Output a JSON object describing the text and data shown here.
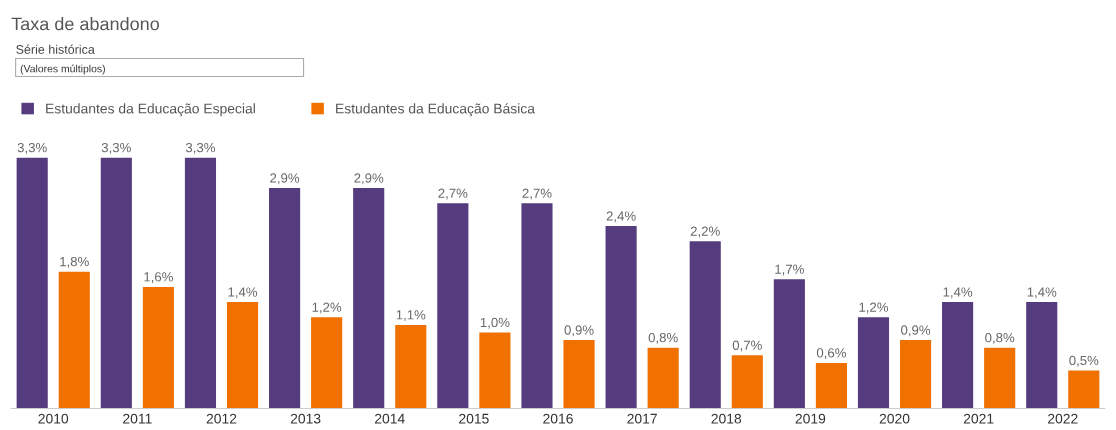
{
  "chart_data": {
    "type": "bar",
    "title": "Taxa de abandono",
    "annotations": [
      "Série histórica",
      "(Valores múltiplos)"
    ],
    "categories": [
      "2010",
      "2011",
      "2012",
      "2013",
      "2014",
      "2015",
      "2016",
      "2017",
      "2018",
      "2019",
      "2020",
      "2021",
      "2022"
    ],
    "series": [
      {
        "name": "Estudantes da Educação Especial",
        "color": "#553c7f",
        "values": [
          3.3,
          3.3,
          3.3,
          2.9,
          2.9,
          2.7,
          2.7,
          2.4,
          2.2,
          1.7,
          1.2,
          1.4,
          1.4
        ],
        "value_labels": [
          "3,3%",
          "3,3%",
          "3,3%",
          "2,9%",
          "2,9%",
          "2,7%",
          "2,7%",
          "2,4%",
          "2,2%",
          "1,7%",
          "1,2%",
          "1,4%",
          "1,4%"
        ]
      },
      {
        "name": "Estudantes da Educação Básica",
        "color": "#f07000",
        "values": [
          1.8,
          1.6,
          1.4,
          1.2,
          1.1,
          1.0,
          0.9,
          0.8,
          0.7,
          0.6,
          0.9,
          0.8,
          0.5
        ],
        "value_labels": [
          "1,8%",
          "1,6%",
          "1,4%",
          "1,2%",
          "1,1%",
          "1,0%",
          "0,9%",
          "0,8%",
          "0,7%",
          "0,6%",
          "0,9%",
          "0,8%",
          "0,5%"
        ]
      }
    ],
    "legend": "top left",
    "grid": false
  }
}
